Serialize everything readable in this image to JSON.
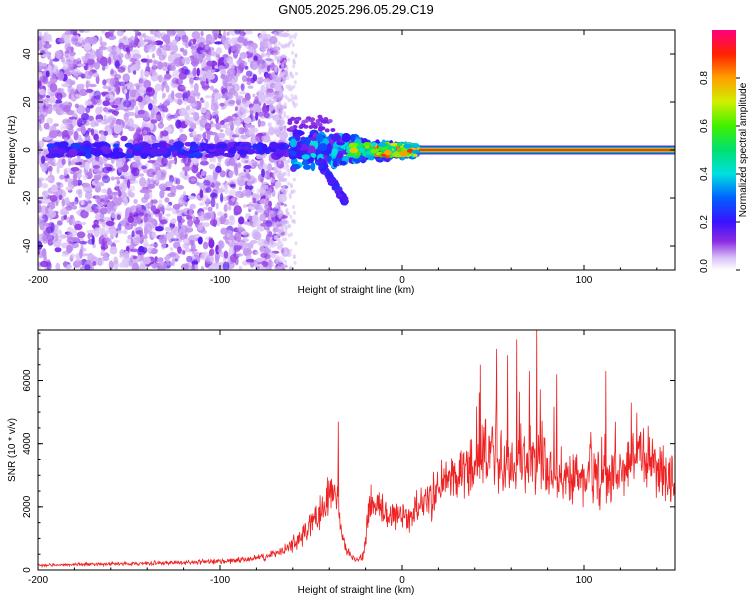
{
  "title": "GN05.2025.296.05.29.C19",
  "chart_data": [
    {
      "type": "heatmap",
      "xlabel": "Height of straight line (km)",
      "ylabel": "Frequency (Hz)",
      "xlim": [
        -200,
        150
      ],
      "ylim": [
        -50,
        50
      ],
      "xticks": [
        -200,
        -100,
        0,
        100
      ],
      "yticks": [
        -40,
        -20,
        0,
        20,
        40
      ],
      "colorbar": {
        "label": "Normalized spectral amplitude",
        "range": [
          0,
          1
        ],
        "ticks": [
          "0.0",
          "0.2",
          "0.4",
          "0.6",
          "0.8"
        ]
      },
      "features": {
        "noise_region_x": [
          -200,
          -70
        ],
        "center_ridge_freq": 0,
        "strong_ridge_x": [
          5,
          150
        ],
        "transition_x": [
          -70,
          5
        ],
        "dip_branch_x": [
          -45,
          -30
        ],
        "dip_branch_freq": [
          -5,
          -23
        ]
      }
    },
    {
      "type": "line",
      "xlabel": "Height of straight line (km)",
      "ylabel": "SNR (10 * v/v)",
      "xlim": [
        -200,
        150
      ],
      "ylim": [
        0,
        7600
      ],
      "xticks": [
        -200,
        -100,
        0,
        100
      ],
      "yticks": [
        0,
        2000,
        4000,
        6000
      ],
      "color": "#ee2222",
      "series": [
        {
          "name": "SNR",
          "x": [
            -200,
            -175,
            -150,
            -125,
            -100,
            -85,
            -75,
            -65,
            -58,
            -52,
            -47,
            -43,
            -40,
            -38,
            -36,
            -34,
            -32,
            -30,
            -27,
            -24,
            -21,
            -19,
            -17,
            -15,
            -12,
            -8,
            -4,
            0,
            5,
            10,
            15,
            20,
            25,
            30,
            35,
            40,
            45,
            50,
            55,
            60,
            65,
            70,
            75,
            80,
            85,
            90,
            95,
            100,
            105,
            110,
            115,
            120,
            125,
            130,
            135,
            140,
            145,
            150
          ],
          "y": [
            150,
            180,
            200,
            230,
            270,
            330,
            420,
            600,
            900,
            1300,
            1700,
            2100,
            2400,
            2700,
            2300,
            1500,
            900,
            600,
            400,
            350,
            500,
            1500,
            2200,
            2000,
            1900,
            1800,
            1750,
            1700,
            1800,
            2000,
            2300,
            2600,
            2800,
            3000,
            3200,
            3400,
            3500,
            3500,
            3400,
            3300,
            3400,
            3500,
            3400,
            3200,
            3100,
            3000,
            3000,
            3000,
            2950,
            2900,
            3000,
            3200,
            3400,
            3600,
            3500,
            3300,
            3100,
            3000
          ]
        }
      ],
      "peaks": [
        {
          "x": -35,
          "y": 4700
        },
        {
          "x": 43,
          "y": 6500
        },
        {
          "x": 52,
          "y": 7000
        },
        {
          "x": 58,
          "y": 6800
        },
        {
          "x": 63,
          "y": 7300
        },
        {
          "x": 70,
          "y": 6300
        },
        {
          "x": 74,
          "y": 7700
        },
        {
          "x": 85,
          "y": 6200
        },
        {
          "x": 112,
          "y": 6300
        },
        {
          "x": 126,
          "y": 5300
        }
      ]
    }
  ]
}
